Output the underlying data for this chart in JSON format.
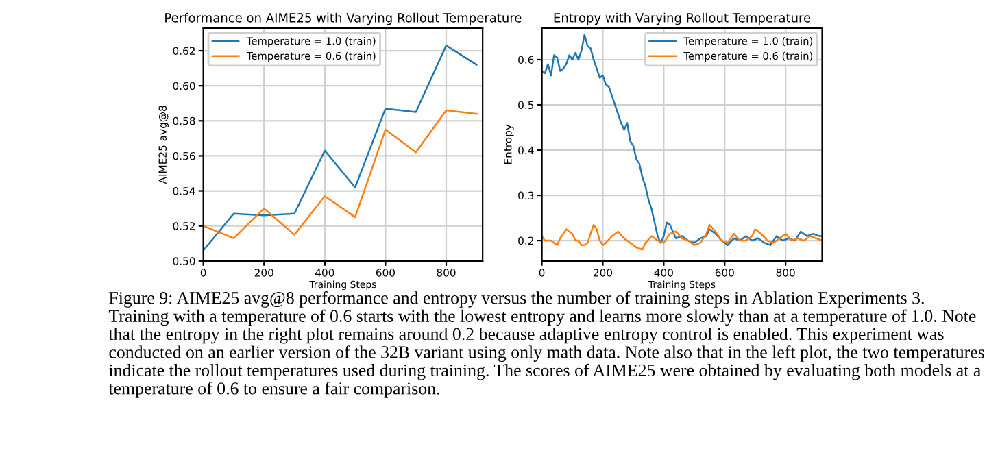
{
  "chart_data": [
    {
      "type": "line",
      "title": "Performance on AIME25 with Varying Rollout Temperature",
      "xlabel": "Training Steps",
      "ylabel": "AIME25 avg@8",
      "xlim": [
        0,
        920
      ],
      "xticks": [
        0,
        200,
        400,
        600,
        800
      ],
      "ylim": [
        0.5,
        0.633
      ],
      "yticks": [
        {
          "value": 0.5,
          "label": "0.50"
        },
        {
          "value": 0.52,
          "label": "0.52"
        },
        {
          "value": 0.54,
          "label": "0.54"
        },
        {
          "value": 0.56,
          "label": "0.56"
        },
        {
          "value": 0.58,
          "label": "0.58"
        },
        {
          "value": 0.6,
          "label": "0.60"
        },
        {
          "value": 0.62,
          "label": "0.62"
        }
      ],
      "grid": true,
      "legend": "top left",
      "x": [
        0,
        100,
        200,
        300,
        400,
        500,
        600,
        700,
        800,
        900
      ],
      "series": [
        {
          "name": "Temperature = 1.0 (train)",
          "color": "#1f77b4",
          "values": [
            0.506,
            0.527,
            0.526,
            0.527,
            0.563,
            0.542,
            0.587,
            0.585,
            0.623,
            0.612
          ]
        },
        {
          "name": "Temperature = 0.6 (train)",
          "color": "#ff7f0e",
          "values": [
            0.52,
            0.513,
            0.53,
            0.515,
            0.537,
            0.525,
            0.575,
            0.562,
            0.586,
            0.584
          ]
        }
      ],
      "annotations": [
        "Figure 9: AIME25 avg@8 performance and entropy versus the number of training steps in Ablation Experiments 3. Training with a temperature of 0.6 starts with the lowest entropy and learns more slowly than at a temperature of 1.0. Note that the entropy in the right plot remains around 0.2 because adaptive entropy control is enabled. This experiment was conducted on an earlier version of the 32B variant using only math data. Note also that in the left plot, the two temperatures indicate the rollout temperatures used during training. The scores of AIME25 were obtained by evaluating both models at a temperature of 0.6 to ensure a fair comparison."
      ]
    },
    {
      "type": "line",
      "title": "Entropy with Varying Rollout Temperature",
      "xlabel": "Training Steps",
      "ylabel": "Entropy",
      "xlim": [
        0,
        920
      ],
      "xticks": [
        0,
        200,
        400,
        600,
        800
      ],
      "ylim": [
        0.155,
        0.67
      ],
      "yticks": [
        0.2,
        0.3,
        0.4,
        0.5,
        0.6
      ],
      "grid": true,
      "legend": "top right",
      "series": [
        {
          "name": "Temperature = 1.0 (train)",
          "color": "#1f77b4",
          "x": [
            0,
            10,
            20,
            30,
            40,
            50,
            60,
            70,
            80,
            90,
            100,
            110,
            120,
            130,
            140,
            150,
            160,
            170,
            180,
            190,
            200,
            210,
            220,
            230,
            240,
            250,
            260,
            270,
            280,
            290,
            300,
            310,
            320,
            330,
            340,
            350,
            360,
            370,
            380,
            390,
            400,
            410,
            420,
            430,
            440,
            460,
            480,
            500,
            520,
            540,
            550,
            570,
            590,
            610,
            630,
            650,
            670,
            690,
            710,
            730,
            750,
            770,
            790,
            810,
            830,
            850,
            870,
            890,
            910,
            920
          ],
          "values": [
            0.575,
            0.57,
            0.59,
            0.565,
            0.61,
            0.605,
            0.575,
            0.58,
            0.59,
            0.61,
            0.6,
            0.615,
            0.6,
            0.62,
            0.655,
            0.63,
            0.625,
            0.6,
            0.58,
            0.56,
            0.565,
            0.545,
            0.54,
            0.52,
            0.5,
            0.48,
            0.46,
            0.445,
            0.46,
            0.42,
            0.41,
            0.38,
            0.37,
            0.34,
            0.32,
            0.29,
            0.27,
            0.24,
            0.21,
            0.195,
            0.21,
            0.24,
            0.235,
            0.22,
            0.205,
            0.21,
            0.2,
            0.195,
            0.205,
            0.21,
            0.225,
            0.215,
            0.2,
            0.19,
            0.205,
            0.2,
            0.21,
            0.2,
            0.205,
            0.195,
            0.19,
            0.21,
            0.2,
            0.205,
            0.2,
            0.22,
            0.21,
            0.215,
            0.21,
            0.21
          ]
        },
        {
          "name": "Temperature = 0.6 (train)",
          "color": "#ff7f0e",
          "x": [
            0,
            10,
            30,
            40,
            50,
            60,
            70,
            80,
            90,
            100,
            110,
            120,
            130,
            140,
            150,
            160,
            170,
            180,
            190,
            200,
            210,
            230,
            250,
            270,
            290,
            310,
            330,
            340,
            360,
            380,
            400,
            420,
            440,
            460,
            480,
            500,
            520,
            540,
            550,
            570,
            590,
            610,
            630,
            650,
            670,
            690,
            700,
            720,
            740,
            760,
            780,
            800,
            820,
            840,
            860,
            880,
            900,
            920
          ],
          "values": [
            0.21,
            0.2,
            0.2,
            0.195,
            0.19,
            0.205,
            0.215,
            0.225,
            0.22,
            0.215,
            0.2,
            0.2,
            0.19,
            0.19,
            0.195,
            0.215,
            0.235,
            0.225,
            0.2,
            0.19,
            0.195,
            0.21,
            0.22,
            0.205,
            0.195,
            0.185,
            0.18,
            0.195,
            0.21,
            0.2,
            0.195,
            0.215,
            0.22,
            0.205,
            0.2,
            0.19,
            0.195,
            0.215,
            0.235,
            0.22,
            0.2,
            0.195,
            0.215,
            0.2,
            0.2,
            0.21,
            0.225,
            0.215,
            0.2,
            0.195,
            0.205,
            0.215,
            0.2,
            0.205,
            0.2,
            0.21,
            0.205,
            0.2
          ]
        }
      ]
    }
  ]
}
